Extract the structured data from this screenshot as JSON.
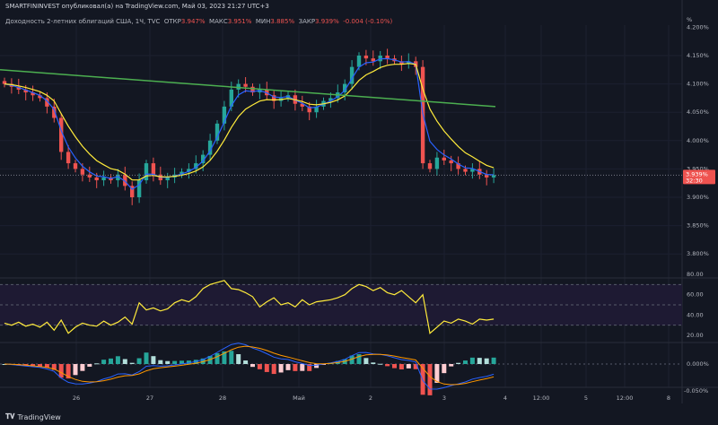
{
  "header": {
    "publisher": "SMARTFININVEST опубликовал(а) на TradingView.com, Май 03, 2023 21:27 UTC+3",
    "symbol": "Доходность 2-летних облигаций США, 1Ч, TVC",
    "open_label": "ОТКР",
    "open": "3.947%",
    "high_label": "МАКС",
    "high": "3.951%",
    "low_label": "МИН",
    "low": "3.885%",
    "close_label": "ЗАКР",
    "close": "3.939%",
    "change": "-0.004 (-0.10%)"
  },
  "price_axis": {
    "unit": "%",
    "ticks": [
      "4.200%",
      "4.150%",
      "4.100%",
      "4.050%",
      "4.000%",
      "3.950%",
      "3.900%",
      "3.850%",
      "3.800%"
    ],
    "last_price": "3.939%",
    "countdown": "32:30"
  },
  "rsi_axis": {
    "ticks": [
      "80.00",
      "60.00",
      "40.00",
      "20.00"
    ]
  },
  "macd_axis": {
    "ticks": [
      "0.000%",
      "-0.050%"
    ]
  },
  "time_axis": [
    "26",
    "27",
    "28",
    "Май",
    "2",
    "3",
    "4",
    "12:00",
    "5",
    "12:00",
    "8"
  ],
  "footer": {
    "brand": "TradingView"
  },
  "colors": {
    "up": "#26a69a",
    "down": "#ef5350",
    "ema_fast": "#2962ff",
    "ema_slow": "#ffeb3b",
    "sma_long": "#4caf50",
    "rsi": "#ffeb3b"
  },
  "chart_data": {
    "type": "candlestick",
    "closes": [
      4.1,
      4.095,
      4.09,
      4.085,
      4.08,
      4.075,
      4.06,
      4.04,
      3.98,
      3.96,
      3.95,
      3.94,
      3.935,
      3.93,
      3.935,
      3.93,
      3.94,
      3.92,
      3.9,
      3.93,
      3.96,
      3.94,
      3.93,
      3.935,
      3.94,
      3.945,
      3.95,
      3.96,
      3.975,
      4.0,
      4.03,
      4.06,
      4.09,
      4.1,
      4.095,
      4.085,
      4.09,
      4.08,
      4.07,
      4.075,
      4.08,
      4.065,
      4.06,
      4.05,
      4.06,
      4.07,
      4.075,
      4.085,
      4.1,
      4.13,
      4.15,
      4.145,
      4.14,
      4.15,
      4.145,
      4.14,
      4.135,
      4.14,
      4.13,
      3.96,
      3.95,
      3.97,
      3.965,
      3.96,
      3.95,
      3.945,
      3.95,
      3.94,
      3.935,
      3.939
    ],
    "sma_long": [
      4.125,
      4.06
    ],
    "rsi": [
      32,
      30,
      33,
      29,
      31,
      28,
      33,
      25,
      35,
      22,
      28,
      32,
      30,
      29,
      34,
      30,
      33,
      38,
      31,
      52,
      45,
      47,
      44,
      46,
      52,
      55,
      53,
      58,
      66,
      70,
      72,
      74,
      66,
      65,
      62,
      58,
      48,
      53,
      57,
      50,
      52,
      48,
      55,
      50,
      53,
      54,
      55,
      57,
      60,
      66,
      70,
      68,
      64,
      67,
      62,
      60,
      64,
      58,
      52,
      60,
      22,
      28,
      34,
      32,
      36,
      34,
      31,
      36,
      35,
      36
    ],
    "price_range": [
      3.78,
      4.2
    ],
    "rsi_levels": [
      70,
      50,
      30
    ]
  }
}
